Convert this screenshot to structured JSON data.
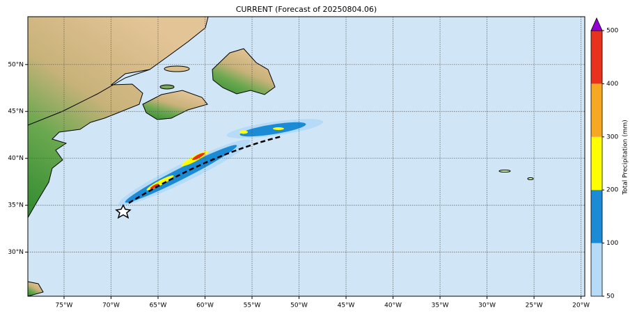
{
  "chart_data": {
    "type": "map",
    "title": "CURRENT (Forecast of 20250804.06)",
    "xlim": [
      -78.85,
      -19.6
    ],
    "ylim": [
      25.3,
      55.1
    ],
    "xticks": [
      {
        "value": -75,
        "label": "75°W"
      },
      {
        "value": -70,
        "label": "70°W"
      },
      {
        "value": -65,
        "label": "65°W"
      },
      {
        "value": -60,
        "label": "60°W"
      },
      {
        "value": -55,
        "label": "55°W"
      },
      {
        "value": -50,
        "label": "50°W"
      },
      {
        "value": -45,
        "label": "45°W"
      },
      {
        "value": -40,
        "label": "40°W"
      },
      {
        "value": -35,
        "label": "35°W"
      },
      {
        "value": -30,
        "label": "30°W"
      },
      {
        "value": -25,
        "label": "25°W"
      },
      {
        "value": -20,
        "label": "20°W"
      }
    ],
    "yticks": [
      {
        "value": 30,
        "label": "30°N"
      },
      {
        "value": 35,
        "label": "35°N"
      },
      {
        "value": 40,
        "label": "40°N"
      },
      {
        "value": 45,
        "label": "45°N"
      },
      {
        "value": 50,
        "label": "50°N"
      }
    ],
    "grid": true,
    "colorbar": {
      "label": "Total Precipitation (mm)",
      "boundaries": [
        50,
        100,
        200,
        300,
        400,
        500
      ],
      "ticks": [
        50,
        100,
        200,
        300,
        400,
        500
      ],
      "colors": [
        "#b5dbf8",
        "#1b8bd6",
        "#ffff00",
        "#f7a823",
        "#e8321e"
      ],
      "extend_color": "#9400d3"
    }
  }
}
